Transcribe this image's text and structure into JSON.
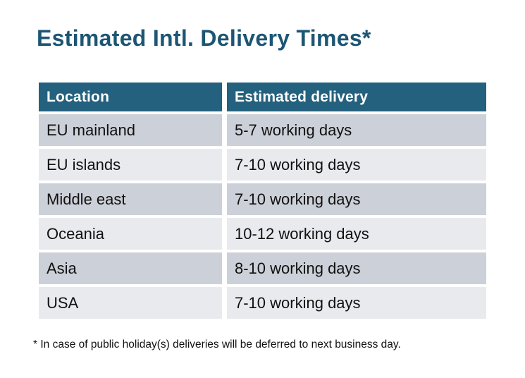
{
  "title": "Estimated Intl. Delivery Times*",
  "chart_data": {
    "type": "table",
    "title": "Estimated Intl. Delivery Times*",
    "columns": [
      "Location",
      "Estimated delivery"
    ],
    "rows": [
      [
        "EU mainland",
        "5-7 working days"
      ],
      [
        "EU islands",
        "7-10 working days"
      ],
      [
        "Middle east",
        "7-10 working days"
      ],
      [
        "Oceania",
        "10-12 working days"
      ],
      [
        "Asia",
        "8-10 working days"
      ],
      [
        "USA",
        "7-10 working days"
      ]
    ],
    "footnote": "* In case of public holiday(s) deliveries will be deferred to next business day."
  },
  "colors": {
    "page_bg": "#ffffff",
    "title_text": "#1d5674",
    "header_bg": "#24617e",
    "header_text": "#ffffff",
    "row_odd_bg": "#ccd0d8",
    "row_even_bg": "#e8eaee",
    "cell_text": "#111111"
  }
}
